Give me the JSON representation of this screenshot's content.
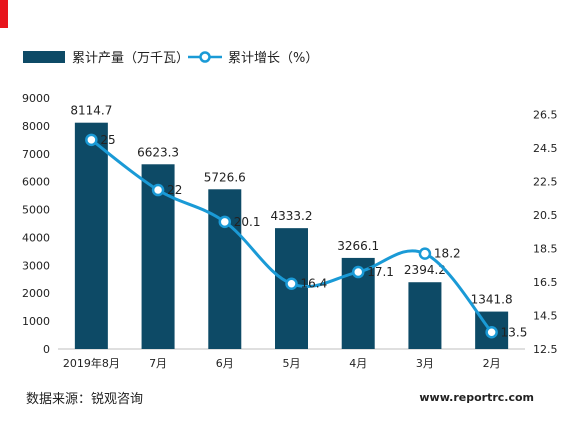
{
  "colors": {
    "bar": "#0d4a66",
    "line": "#1a9ad6",
    "marker_fill": "#ffffff",
    "accent_red": "#e8141c",
    "axis_text": "#222222",
    "grid": "#d9d9d9"
  },
  "legend": {
    "bar_label": "累计产量（万千瓦）",
    "line_label": "累计增长（%）"
  },
  "source_text": "数据来源：锐观咨询",
  "watermark": "www.reportrc.com",
  "chart_data": {
    "type": "bar",
    "categories": [
      "2019年8月",
      "7月",
      "6月",
      "5月",
      "4月",
      "3月",
      "2月"
    ],
    "series": [
      {
        "name": "累计产量（万千瓦）",
        "type": "bar",
        "axis": "left",
        "values": [
          8114.7,
          6623.3,
          5726.6,
          4333.2,
          3266.1,
          2394.2,
          1341.8
        ],
        "labels": [
          "8114.7",
          "6623.3",
          "5726.6",
          "4333.2",
          "3266.1",
          "2394.2",
          "1341.8"
        ]
      },
      {
        "name": "累计增长（%）",
        "type": "line",
        "axis": "right",
        "values": [
          25,
          22,
          20.1,
          16.4,
          17.1,
          18.2,
          13.5
        ],
        "labels": [
          "25",
          "22",
          "20.1",
          "16.4",
          "17.1",
          "18.2",
          "13.5"
        ]
      }
    ],
    "left_axis": {
      "ylim": [
        0,
        9000
      ],
      "ticks": [
        0,
        1000,
        2000,
        3000,
        4000,
        5000,
        6000,
        7000,
        8000,
        9000
      ],
      "tick_labels": [
        "0",
        "1000",
        "2000",
        "3000",
        "4000",
        "5000",
        "6000",
        "7000",
        "8000",
        "9000"
      ]
    },
    "right_axis": {
      "ylim": [
        12.5,
        27.5
      ],
      "ticks": [
        12.5,
        14.5,
        16.5,
        18.5,
        20.5,
        22.5,
        24.5,
        26.5
      ],
      "tick_labels": [
        "12.5",
        "14.5",
        "16.5",
        "18.5",
        "20.5",
        "22.5",
        "24.5",
        "26.5"
      ]
    },
    "grid": false,
    "legend_position": "top-left"
  }
}
